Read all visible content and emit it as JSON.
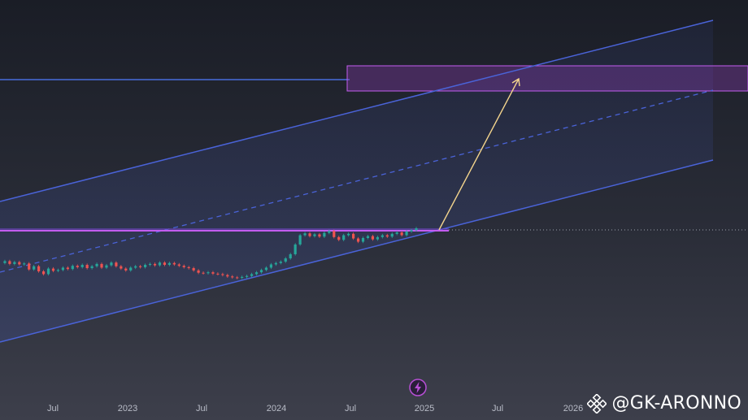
{
  "chart_data": {
    "type": "line",
    "title": "",
    "xlabel": "",
    "ylabel": "",
    "x_ticks": [
      "Jul",
      "2023",
      "Jul",
      "2024",
      "Jul",
      "2025",
      "Jul",
      "2026"
    ],
    "series": [
      {
        "values": [
          0.62,
          0.66,
          0.6,
          0.64,
          0.59,
          0.61,
          0.48,
          0.55,
          0.44,
          0.38,
          0.5,
          0.45,
          0.47,
          0.52,
          0.49,
          0.56,
          0.53,
          0.58,
          0.51,
          0.55,
          0.6,
          0.52,
          0.57,
          0.63,
          0.55,
          0.5,
          0.46,
          0.52,
          0.55,
          0.53,
          0.58,
          0.6,
          0.57,
          0.63,
          0.58,
          0.62,
          0.59,
          0.56,
          0.53,
          0.51,
          0.46,
          0.41,
          0.4,
          0.42,
          0.39,
          0.38,
          0.36,
          0.33,
          0.31,
          0.3,
          0.32,
          0.34,
          0.38,
          0.42,
          0.47,
          0.52,
          0.59,
          0.62,
          0.65,
          0.72,
          0.81,
          1.02,
          1.22,
          1.26,
          1.2,
          1.24,
          1.19,
          1.27,
          1.31,
          1.18,
          1.12,
          1.22,
          1.25,
          1.15,
          1.08,
          1.16,
          1.2,
          1.13,
          1.18,
          1.22,
          1.19,
          1.25,
          1.28,
          1.22,
          1.3,
          1.33,
          1.37
        ]
      }
    ],
    "colors": {
      "price_up": "#26a69a",
      "price_down": "#ef5350",
      "channel": "#4a63d8",
      "zone": "#b84fd6",
      "arrow": "#f4d58d",
      "horizontal_level": "#4f7cff"
    }
  },
  "watermark": {
    "text": "@GK-ARONNO",
    "logo_icon": "binance-logo"
  },
  "lightning_icon": "lightning-bolt-icon"
}
